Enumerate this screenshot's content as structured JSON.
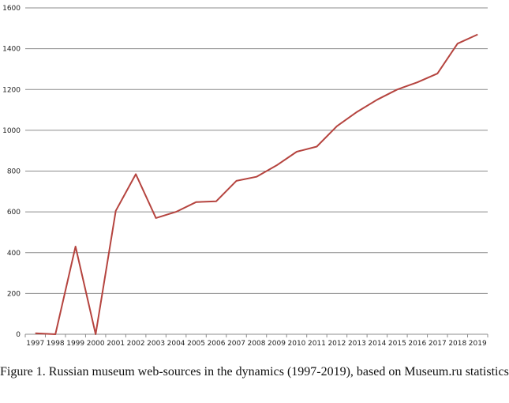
{
  "caption": "Figure 1. Russian museum web-sources in the dynamics (1997-2019), based on Museum.ru statistics",
  "chart_data": {
    "type": "line",
    "title": "",
    "xlabel": "",
    "ylabel": "",
    "x": [
      "1997",
      "1998",
      "1999",
      "2000",
      "2001",
      "2002",
      "2003",
      "2004",
      "2005",
      "2006",
      "2007",
      "2008",
      "2009",
      "2010",
      "2011",
      "2012",
      "2013",
      "2014",
      "2015",
      "2016",
      "2017",
      "2018",
      "2019"
    ],
    "series": [
      {
        "values": [
          5,
          0,
          430,
          0,
          605,
          785,
          570,
          600,
          648,
          652,
          752,
          772,
          828,
          895,
          920,
          1020,
          1090,
          1150,
          1200,
          1235,
          1278,
          1425,
          1470
        ],
        "color": "#b5443f"
      }
    ],
    "ylim": [
      0,
      1600
    ],
    "yticks": [
      "0",
      "200",
      "400",
      "600",
      "800",
      "1000",
      "1200",
      "1400",
      "1600"
    ],
    "grid": true,
    "legend": "none"
  }
}
